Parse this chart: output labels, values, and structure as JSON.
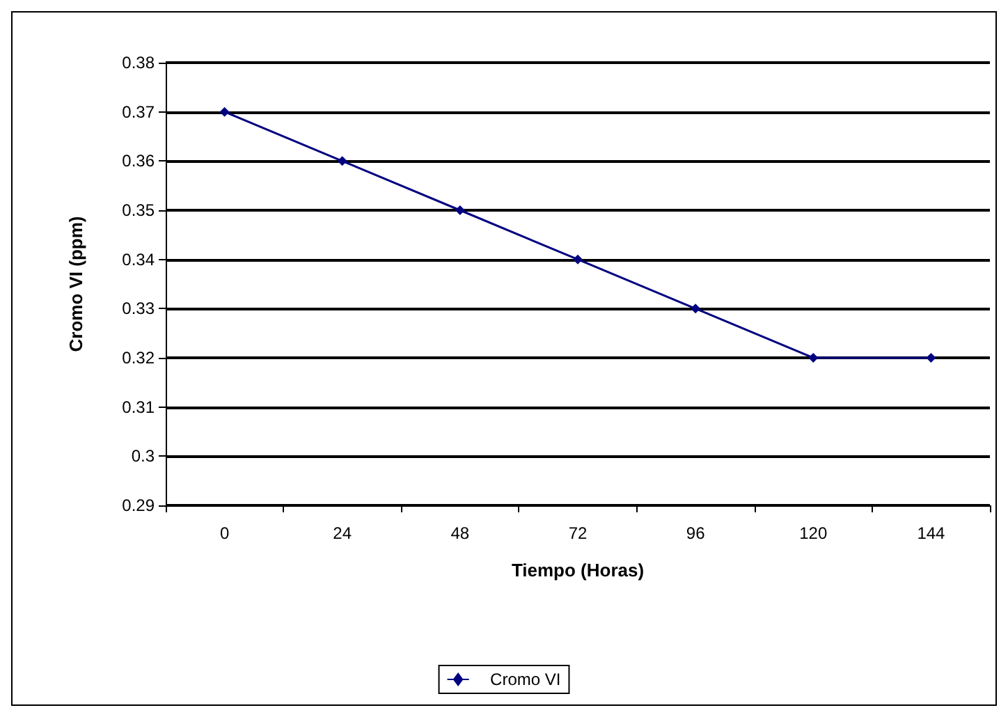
{
  "chart_data": {
    "type": "line",
    "xlabel": "Tiempo (Horas)",
    "ylabel": "Cromo VI (ppm)",
    "categories": [
      "0",
      "24",
      "48",
      "72",
      "96",
      "120",
      "144"
    ],
    "series": [
      {
        "name": "Cromo VI",
        "color": "#000080",
        "values": [
          0.37,
          0.36,
          0.35,
          0.34,
          0.33,
          0.32,
          0.32
        ]
      }
    ],
    "ylim": [
      0.29,
      0.38
    ],
    "yticks": [
      0.29,
      0.3,
      0.31,
      0.32,
      0.33,
      0.34,
      0.35,
      0.36,
      0.37,
      0.38
    ],
    "grid": "y",
    "legend": "bottom",
    "marker": "diamond",
    "line_style": "solid"
  }
}
